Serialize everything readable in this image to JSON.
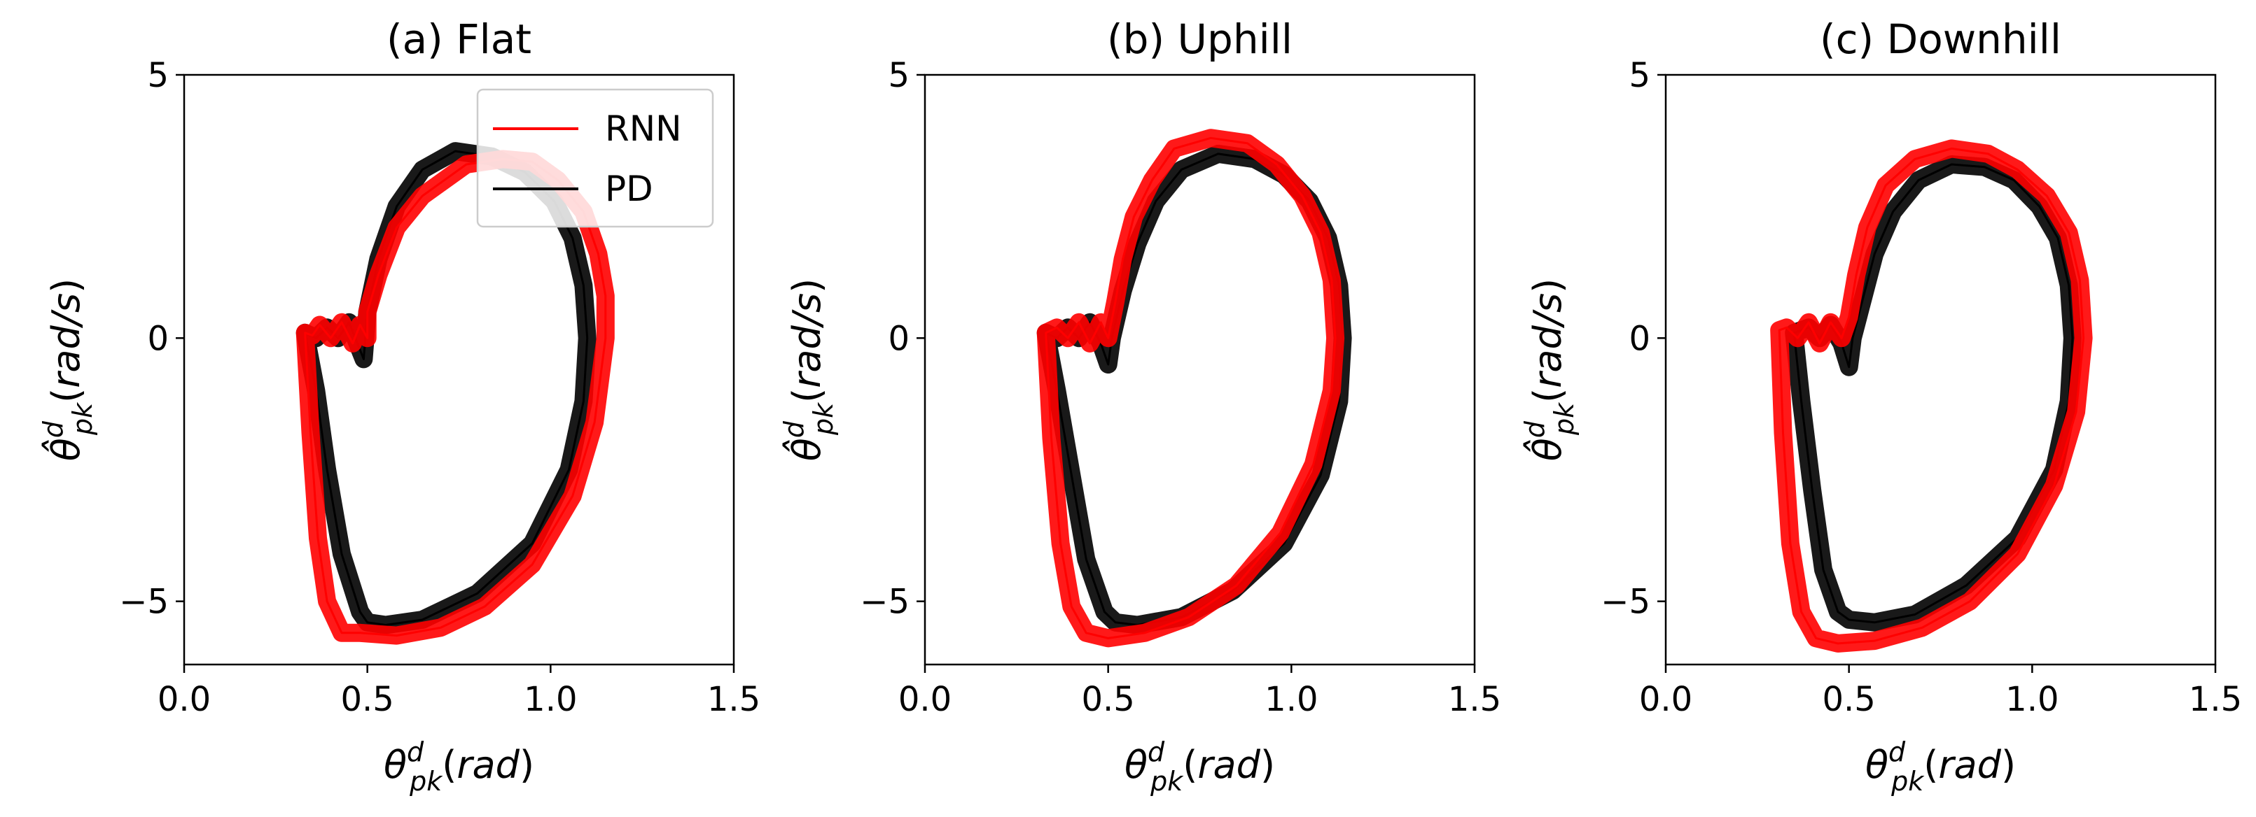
{
  "chart_data": [
    {
      "type": "line",
      "title": "(a) Flat",
      "xlabel": "θ^d_pk(rad)",
      "ylabel": "θ̂^d_pk(rad/s)",
      "xlim": [
        0.0,
        1.5
      ],
      "ylim": [
        -6.2,
        5.0
      ],
      "x_ticks": [
        "0.0",
        "0.5",
        "1.0",
        "1.5"
      ],
      "y_ticks": [
        "−5",
        "0",
        "5"
      ],
      "grid": false,
      "legend": {
        "placement": "top-right",
        "entries": [
          "RNN",
          "PD"
        ]
      },
      "series": [
        {
          "name": "RNN",
          "color": "#ff0000",
          "x": [
            0.33,
            0.345,
            0.365,
            0.39,
            0.43,
            0.48,
            0.58,
            0.7,
            0.82,
            0.95,
            1.06,
            1.12,
            1.15,
            1.15,
            1.13,
            1.09,
            1.02,
            0.95,
            0.87,
            0.77,
            0.65,
            0.58,
            0.53,
            0.5,
            0.5,
            0.48,
            0.46,
            0.43,
            0.4,
            0.37,
            0.35,
            0.33
          ],
          "y": [
            0.1,
            -1.8,
            -3.8,
            -5.0,
            -5.6,
            -5.6,
            -5.65,
            -5.5,
            -5.1,
            -4.3,
            -3.0,
            -1.6,
            0.0,
            0.8,
            1.6,
            2.4,
            3.0,
            3.35,
            3.4,
            3.3,
            2.7,
            2.1,
            1.2,
            0.5,
            0.0,
            0.25,
            -0.1,
            0.3,
            0.0,
            0.25,
            0.05,
            0.1
          ]
        },
        {
          "name": "PD",
          "color": "#000000",
          "x": [
            0.33,
            0.36,
            0.39,
            0.43,
            0.48,
            0.5,
            0.55,
            0.65,
            0.8,
            0.95,
            1.05,
            1.09,
            1.1,
            1.09,
            1.06,
            1.01,
            0.93,
            0.84,
            0.74,
            0.65,
            0.58,
            0.53,
            0.5,
            0.49,
            0.47,
            0.45,
            0.42,
            0.39,
            0.36,
            0.33
          ],
          "y": [
            0.1,
            -1.0,
            -2.5,
            -4.1,
            -5.2,
            -5.4,
            -5.45,
            -5.35,
            -4.85,
            -3.9,
            -2.5,
            -1.2,
            0.0,
            1.0,
            1.9,
            2.6,
            3.15,
            3.45,
            3.55,
            3.2,
            2.5,
            1.5,
            0.5,
            -0.4,
            -0.05,
            0.3,
            0.0,
            0.2,
            0.0,
            0.1
          ]
        }
      ]
    },
    {
      "type": "line",
      "title": "(b) Uphill",
      "xlabel": "θ^d_pk(rad)",
      "ylabel": "θ̂^d_pk(rad/s)",
      "xlim": [
        0.0,
        1.5
      ],
      "ylim": [
        -6.2,
        5.0
      ],
      "x_ticks": [
        "0.0",
        "0.5",
        "1.0",
        "1.5"
      ],
      "y_ticks": [
        "−5",
        "0",
        "5"
      ],
      "grid": false,
      "series": [
        {
          "name": "RNN",
          "color": "#ff0000",
          "x": [
            0.33,
            0.345,
            0.37,
            0.4,
            0.44,
            0.5,
            0.6,
            0.72,
            0.85,
            0.97,
            1.06,
            1.11,
            1.12,
            1.11,
            1.08,
            1.03,
            0.96,
            0.88,
            0.78,
            0.68,
            0.62,
            0.57,
            0.54,
            0.52,
            0.5,
            0.48,
            0.45,
            0.42,
            0.39,
            0.36,
            0.33
          ],
          "y": [
            0.1,
            -1.9,
            -3.9,
            -5.1,
            -5.6,
            -5.7,
            -5.6,
            -5.3,
            -4.7,
            -3.7,
            -2.4,
            -1.0,
            0.0,
            1.1,
            2.0,
            2.7,
            3.3,
            3.7,
            3.8,
            3.6,
            3.0,
            2.3,
            1.5,
            0.7,
            0.0,
            0.3,
            -0.1,
            0.3,
            0.0,
            0.2,
            0.1
          ]
        },
        {
          "name": "PD",
          "color": "#000000",
          "x": [
            0.33,
            0.36,
            0.4,
            0.44,
            0.49,
            0.52,
            0.58,
            0.7,
            0.84,
            0.98,
            1.08,
            1.13,
            1.14,
            1.13,
            1.1,
            1.05,
            0.98,
            0.9,
            0.8,
            0.7,
            0.63,
            0.58,
            0.54,
            0.51,
            0.5,
            0.48,
            0.45,
            0.42,
            0.39,
            0.36,
            0.33
          ],
          "y": [
            0.1,
            -1.0,
            -2.6,
            -4.2,
            -5.2,
            -5.4,
            -5.45,
            -5.3,
            -4.8,
            -3.9,
            -2.6,
            -1.2,
            0.0,
            1.0,
            1.9,
            2.6,
            3.1,
            3.4,
            3.5,
            3.2,
            2.6,
            1.8,
            0.9,
            0.0,
            -0.5,
            -0.1,
            0.3,
            0.0,
            0.2,
            0.0,
            0.1
          ]
        }
      ]
    },
    {
      "type": "line",
      "title": "(c) Downhill",
      "xlabel": "θ^d_pk(rad)",
      "ylabel": "θ̂^d_pk(rad/s)",
      "xlim": [
        0.0,
        1.5
      ],
      "ylim": [
        -6.2,
        5.0
      ],
      "x_ticks": [
        "0.0",
        "0.5",
        "1.0",
        "1.5"
      ],
      "y_ticks": [
        "−5",
        "0",
        "5"
      ],
      "grid": false,
      "series": [
        {
          "name": "RNN",
          "color": "#ff0000",
          "x": [
            0.31,
            0.32,
            0.34,
            0.37,
            0.41,
            0.47,
            0.57,
            0.7,
            0.83,
            0.96,
            1.06,
            1.12,
            1.14,
            1.13,
            1.1,
            1.04,
            0.96,
            0.88,
            0.78,
            0.68,
            0.6,
            0.55,
            0.52,
            0.5,
            0.48,
            0.45,
            0.42,
            0.39,
            0.36,
            0.33,
            0.31
          ],
          "y": [
            0.15,
            -1.8,
            -3.9,
            -5.2,
            -5.7,
            -5.8,
            -5.75,
            -5.5,
            -5.0,
            -4.1,
            -2.8,
            -1.4,
            0.0,
            1.1,
            2.0,
            2.7,
            3.2,
            3.5,
            3.6,
            3.4,
            2.9,
            2.1,
            1.2,
            0.4,
            0.0,
            0.3,
            -0.1,
            0.3,
            0.0,
            0.2,
            0.15
          ]
        },
        {
          "name": "PD",
          "color": "#000000",
          "x": [
            0.35,
            0.37,
            0.4,
            0.43,
            0.47,
            0.5,
            0.57,
            0.68,
            0.82,
            0.96,
            1.06,
            1.1,
            1.11,
            1.1,
            1.07,
            1.02,
            0.95,
            0.87,
            0.78,
            0.69,
            0.62,
            0.57,
            0.54,
            0.51,
            0.5,
            0.48,
            0.45,
            0.42,
            0.39,
            0.35
          ],
          "y": [
            0.1,
            -1.2,
            -2.9,
            -4.4,
            -5.2,
            -5.35,
            -5.4,
            -5.25,
            -4.7,
            -3.8,
            -2.5,
            -1.2,
            0.0,
            1.0,
            1.9,
            2.5,
            3.0,
            3.25,
            3.3,
            3.0,
            2.4,
            1.6,
            0.8,
            0.0,
            -0.55,
            -0.1,
            0.25,
            0.0,
            0.2,
            0.1
          ]
        }
      ]
    }
  ]
}
